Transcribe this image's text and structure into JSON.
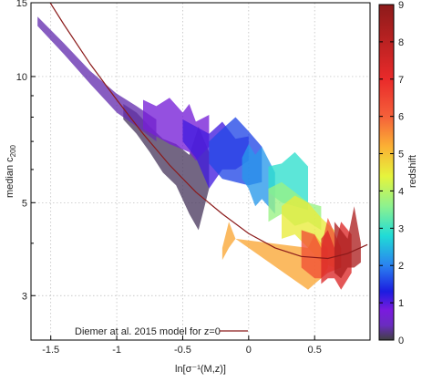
{
  "chart_data": {
    "type": "area",
    "xlabel": "ln[σ⁻¹(M,z)]",
    "ylabel": "median c₂₀₀",
    "ylabel_parts": [
      "median c",
      "200"
    ],
    "y_scale": "log",
    "xlim": [
      -1.65,
      0.92
    ],
    "ylim": [
      2.35,
      15
    ],
    "x_ticks": [
      -1.5,
      -1,
      -0.5,
      0,
      0.5
    ],
    "x_tick_labels": [
      "-1.5",
      "-1",
      "-0.5",
      "0",
      "0.5"
    ],
    "y_ticks": [
      3,
      5,
      10,
      15
    ],
    "y_tick_labels": [
      "3",
      "5",
      "10",
      "15"
    ],
    "grid": true,
    "colorbar": {
      "label": "redshift",
      "range": [
        0,
        9
      ],
      "ticks": [
        0,
        1,
        2,
        3,
        4,
        5,
        6,
        7,
        8,
        9
      ],
      "tick_labels": [
        "0",
        "1",
        "2",
        "3",
        "4",
        "5",
        "6",
        "7",
        "8",
        "9"
      ],
      "stops": [
        {
          "z": 0,
          "color": "#404040"
        },
        {
          "z": 0.4,
          "color": "#6a2cc0"
        },
        {
          "z": 0.8,
          "color": "#7a1bde"
        },
        {
          "z": 1.3,
          "color": "#1c1ce0"
        },
        {
          "z": 2.0,
          "color": "#2a82f0"
        },
        {
          "z": 2.8,
          "color": "#20dcd6"
        },
        {
          "z": 3.6,
          "color": "#8ef28e"
        },
        {
          "z": 4.4,
          "color": "#e6f43c"
        },
        {
          "z": 5.2,
          "color": "#fbb034"
        },
        {
          "z": 6.0,
          "color": "#f5603a"
        },
        {
          "z": 7.0,
          "color": "#e92a2a"
        },
        {
          "z": 9.0,
          "color": "#8c1a1a"
        }
      ]
    },
    "legend": {
      "position": "bottom-left",
      "label": "Diemer at al. 2015 model for z=0",
      "color": "#8b1a1a"
    },
    "model_curve": {
      "name": "Diemer at al. 2015 model for z=0",
      "color": "#8b1a1a",
      "x": [
        -1.55,
        -1.4,
        -1.2,
        -1.0,
        -0.8,
        -0.6,
        -0.4,
        -0.2,
        0.0,
        0.2,
        0.4,
        0.6,
        0.75,
        0.9
      ],
      "y": [
        15.8,
        13.3,
        10.7,
        8.8,
        7.3,
        6.15,
        5.3,
        4.7,
        4.22,
        3.9,
        3.72,
        3.68,
        3.78,
        3.97
      ]
    },
    "series": [
      {
        "z": 0.1,
        "x": [
          -0.95,
          -0.85,
          -0.75,
          -0.65,
          -0.55,
          -0.45,
          -0.38,
          -0.3
        ],
        "y_low": [
          7.9,
          7.3,
          6.6,
          5.9,
          5.5,
          4.7,
          4.3,
          5.4
        ],
        "y_high": [
          8.6,
          8.2,
          7.6,
          7.1,
          6.9,
          6.5,
          7.6,
          6.6
        ]
      },
      {
        "z": 0.35,
        "x": [
          -1.6,
          -1.4,
          -1.2,
          -1.0,
          -0.85,
          -0.7
        ],
        "y_low": [
          13.2,
          11.3,
          9.6,
          8.2,
          7.6,
          7.0
        ],
        "y_high": [
          13.9,
          12.0,
          10.3,
          9.1,
          8.5,
          7.9
        ]
      },
      {
        "z": 0.7,
        "x": [
          -0.8,
          -0.7,
          -0.6,
          -0.5,
          -0.45,
          -0.4,
          -0.3
        ],
        "y_low": [
          7.5,
          7.2,
          6.9,
          6.7,
          6.6,
          6.3,
          6.8
        ],
        "y_high": [
          8.8,
          8.5,
          8.9,
          8.2,
          8.6,
          7.8,
          8.1
        ]
      },
      {
        "z": 1.1,
        "x": [
          -0.5,
          -0.4,
          -0.3,
          -0.2,
          -0.1,
          0.0
        ],
        "y_low": [
          7.0,
          6.4,
          5.4,
          6.0,
          6.0,
          6.3
        ],
        "y_high": [
          7.9,
          7.6,
          7.3,
          7.8,
          7.1,
          7.2
        ]
      },
      {
        "z": 1.6,
        "x": [
          -0.3,
          -0.2,
          -0.1,
          0.0,
          0.1
        ],
        "y_low": [
          6.2,
          5.7,
          5.6,
          5.5,
          5.6
        ],
        "y_high": [
          7.0,
          7.5,
          8.0,
          7.4,
          6.8
        ]
      },
      {
        "z": 2.2,
        "x": [
          -0.05,
          0.0,
          0.05,
          0.1,
          0.2
        ],
        "y_low": [
          5.7,
          5.4,
          4.9,
          5.1,
          4.7
        ],
        "y_high": [
          6.4,
          6.9,
          6.5,
          6.8,
          5.9
        ]
      },
      {
        "z": 2.9,
        "x": [
          0.15,
          0.25,
          0.35,
          0.45
        ],
        "y_low": [
          5.3,
          5.0,
          4.9,
          4.8
        ],
        "y_high": [
          6.1,
          6.2,
          6.6,
          6.1
        ]
      },
      {
        "z": 3.7,
        "x": [
          0.15,
          0.25,
          0.35,
          0.45,
          0.55
        ],
        "y_low": [
          4.5,
          4.7,
          4.4,
          4.5,
          4.3
        ],
        "y_high": [
          5.4,
          5.6,
          5.3,
          5.0,
          4.9
        ]
      },
      {
        "z": 4.5,
        "x": [
          0.25,
          0.35,
          0.45,
          0.55,
          0.65
        ],
        "y_low": [
          4.1,
          4.2,
          3.9,
          3.6,
          3.5
        ],
        "y_high": [
          4.9,
          5.2,
          5.0,
          4.6,
          4.3
        ]
      },
      {
        "z": 5.3,
        "x": [
          -0.2,
          -0.15,
          -0.1,
          0.45,
          0.5,
          0.55,
          0.6
        ],
        "y_low": [
          3.65,
          3.9,
          4.1,
          3.1,
          3.2,
          3.3,
          3.5
        ],
        "y_high": [
          3.9,
          4.5,
          4.1,
          3.9,
          4.2,
          4.0,
          3.9
        ]
      },
      {
        "z": 6.3,
        "x": [
          0.4,
          0.5,
          0.55,
          0.6,
          0.7
        ],
        "y_low": [
          3.5,
          3.3,
          3.3,
          3.4,
          3.5
        ],
        "y_high": [
          4.3,
          4.2,
          3.9,
          4.6,
          3.9
        ]
      },
      {
        "z": 7.3,
        "x": [
          0.55,
          0.6,
          0.65,
          0.7,
          0.78
        ],
        "y_low": [
          3.2,
          3.3,
          3.3,
          3.1,
          3.4
        ],
        "y_high": [
          4.1,
          4.3,
          3.9,
          4.5,
          4.2
        ]
      },
      {
        "z": 8.3,
        "x": [
          0.65,
          0.7,
          0.75,
          0.8,
          0.85
        ],
        "y_low": [
          3.4,
          3.3,
          3.5,
          3.5,
          3.6
        ],
        "y_high": [
          4.5,
          4.3,
          4.1,
          4.9,
          4.0
        ]
      }
    ]
  }
}
